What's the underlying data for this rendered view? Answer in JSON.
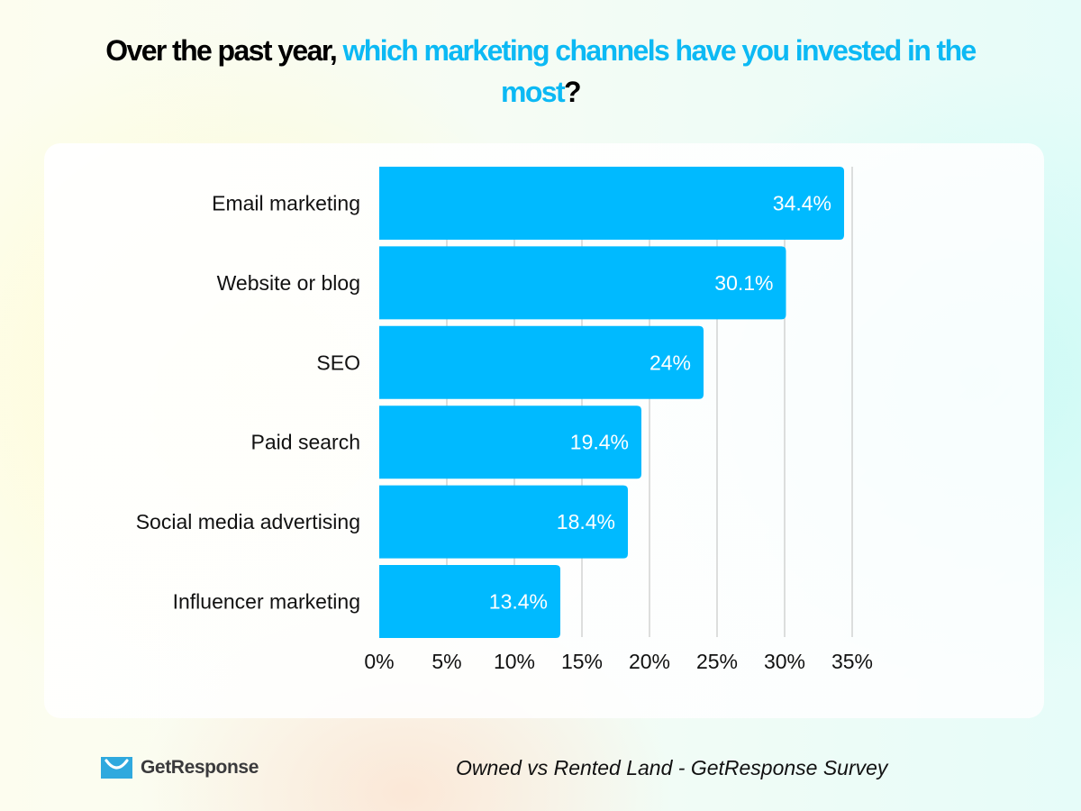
{
  "header": {
    "title_part1": "Over the past year, ",
    "title_part2": "which marketing channels have you invested in the most",
    "title_part3": "?"
  },
  "colors": {
    "bar": "#00baff",
    "accent_title": "#0cb9f4",
    "gridline": "#c8c8c8",
    "logo_blue": "#2fa9de"
  },
  "chart_data": {
    "type": "bar",
    "orientation": "horizontal",
    "title": "Over the past year, which marketing channels have you invested in the most?",
    "xlabel": "",
    "ylabel": "",
    "categories": [
      "Email marketing",
      "Website or blog",
      "SEO",
      "Paid search",
      "Social media advertising",
      "Influencer marketing"
    ],
    "values": [
      34.4,
      30.1,
      24,
      19.4,
      18.4,
      13.4
    ],
    "value_labels": [
      "34.4%",
      "30.1%",
      "24%",
      "19.4%",
      "18.4%",
      "13.4%"
    ],
    "xlim": [
      0,
      35
    ],
    "xticks": [
      0,
      5,
      10,
      15,
      20,
      25,
      30,
      35
    ],
    "xtick_labels": [
      "0%",
      "5%",
      "10%",
      "15%",
      "20%",
      "25%",
      "30%",
      "35%"
    ],
    "grid": "vertical",
    "legend": "none"
  },
  "footer": {
    "brand": "GetResponse",
    "source": "Owned vs Rented Land - GetResponse Survey"
  }
}
